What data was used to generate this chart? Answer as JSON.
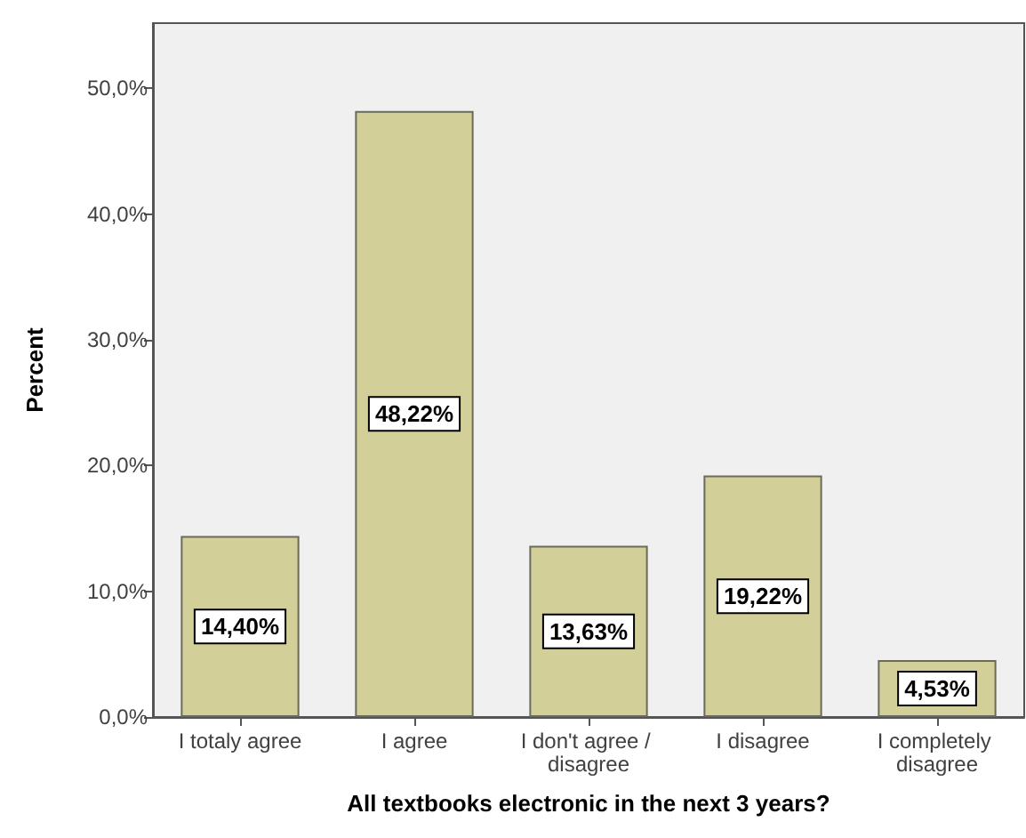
{
  "chart_data": {
    "type": "bar",
    "xlabel": "All textbooks electronic in the next 3 years?",
    "ylabel": "Percent",
    "categories": [
      "I totaly agree",
      "I agree",
      "I don't agree / disagree",
      "I disagree",
      "I completely disagree"
    ],
    "values": [
      14.4,
      48.22,
      13.63,
      19.22,
      4.53
    ],
    "value_labels": [
      "14,40%",
      "48,22%",
      "13,63%",
      "19,22%",
      "4,53%"
    ],
    "color": "#d3cf98",
    "ylim": [
      0,
      55.2
    ],
    "yticks": [
      {
        "value": 0,
        "label": "0,0%"
      },
      {
        "value": 10,
        "label": "10,0%"
      },
      {
        "value": 20,
        "label": "20,0%"
      },
      {
        "value": 30,
        "label": "30,0%"
      },
      {
        "value": 40,
        "label": "40,0%"
      },
      {
        "value": 50,
        "label": "50,0%"
      }
    ],
    "grid": false
  }
}
